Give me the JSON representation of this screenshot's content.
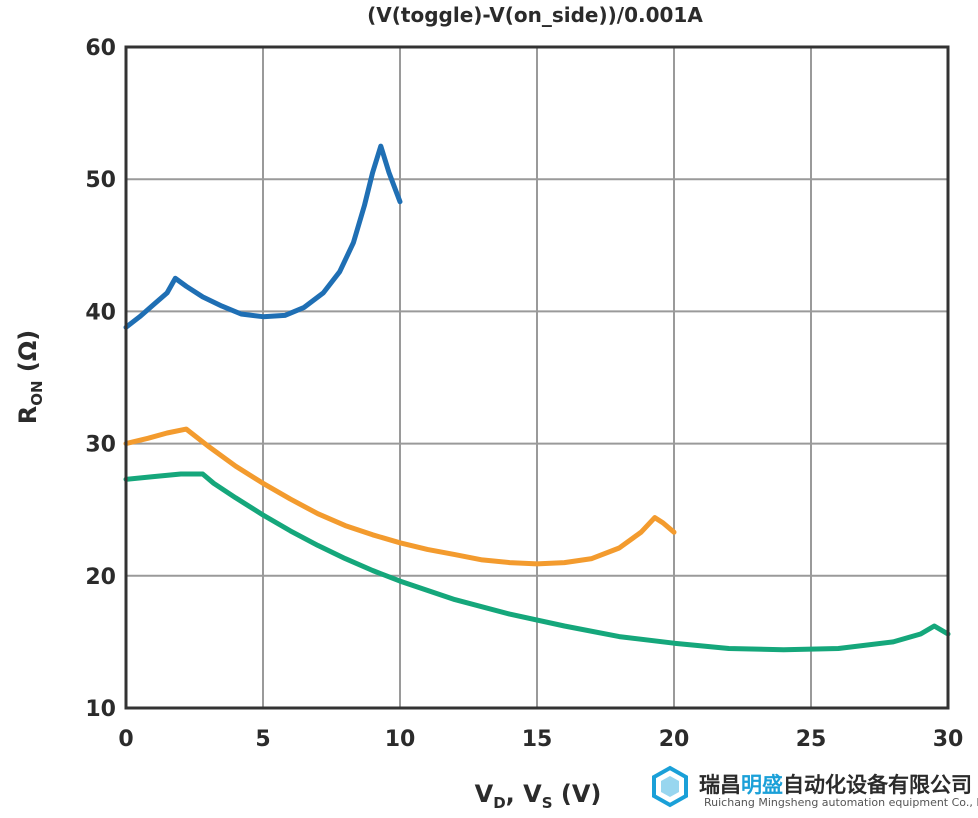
{
  "chart_data": {
    "type": "line",
    "title": "(V(toggle)-V(on_side))/0.001A",
    "xlabel": {
      "main": "V",
      "sub1": "D",
      "sep": ", V",
      "sub2": "S",
      "unit": " (V)"
    },
    "ylabel": {
      "main": "R",
      "sub": "ON",
      "unit": " (Ω)"
    },
    "xlim": [
      0,
      30
    ],
    "ylim": [
      10,
      60
    ],
    "xticks": [
      "0",
      "5",
      "10",
      "15",
      "20",
      "25",
      "30"
    ],
    "xtick_values": [
      0,
      5,
      10,
      15,
      20,
      25,
      30
    ],
    "yticks": [
      "10",
      "20",
      "30",
      "40",
      "50",
      "60"
    ],
    "ytick_values": [
      10,
      20,
      30,
      40,
      50,
      60
    ],
    "grid": true,
    "series": [
      {
        "color": "#1f6fb4",
        "points": [
          [
            0,
            38.8
          ],
          [
            0.5,
            39.6
          ],
          [
            1.0,
            40.5
          ],
          [
            1.5,
            41.4
          ],
          [
            1.8,
            42.5
          ],
          [
            2.2,
            41.9
          ],
          [
            2.8,
            41.1
          ],
          [
            3.5,
            40.4
          ],
          [
            4.2,
            39.8
          ],
          [
            5.0,
            39.6
          ],
          [
            5.8,
            39.7
          ],
          [
            6.5,
            40.3
          ],
          [
            7.2,
            41.4
          ],
          [
            7.8,
            43.0
          ],
          [
            8.3,
            45.2
          ],
          [
            8.7,
            48.0
          ],
          [
            9.0,
            50.5
          ],
          [
            9.3,
            52.5
          ],
          [
            9.6,
            50.5
          ],
          [
            10.0,
            48.3
          ]
        ]
      },
      {
        "color": "#f39b2e",
        "points": [
          [
            0,
            30.0
          ],
          [
            0.8,
            30.4
          ],
          [
            1.5,
            30.8
          ],
          [
            2.2,
            31.1
          ],
          [
            3.0,
            29.8
          ],
          [
            4.0,
            28.3
          ],
          [
            5.0,
            27.0
          ],
          [
            6.0,
            25.8
          ],
          [
            7.0,
            24.7
          ],
          [
            8.0,
            23.8
          ],
          [
            9.0,
            23.1
          ],
          [
            10.0,
            22.5
          ],
          [
            11.0,
            22.0
          ],
          [
            12.0,
            21.6
          ],
          [
            13.0,
            21.2
          ],
          [
            14.0,
            21.0
          ],
          [
            15.0,
            20.9
          ],
          [
            16.0,
            21.0
          ],
          [
            17.0,
            21.3
          ],
          [
            18.0,
            22.1
          ],
          [
            18.8,
            23.3
          ],
          [
            19.3,
            24.4
          ],
          [
            19.6,
            24.0
          ],
          [
            20.0,
            23.3
          ]
        ]
      },
      {
        "color": "#15a77b",
        "points": [
          [
            0,
            27.3
          ],
          [
            1.0,
            27.5
          ],
          [
            2.0,
            27.7
          ],
          [
            2.8,
            27.7
          ],
          [
            3.2,
            27.0
          ],
          [
            4.0,
            25.9
          ],
          [
            5.0,
            24.6
          ],
          [
            6.0,
            23.4
          ],
          [
            7.0,
            22.3
          ],
          [
            8.0,
            21.3
          ],
          [
            9.0,
            20.4
          ],
          [
            10.0,
            19.6
          ],
          [
            12.0,
            18.2
          ],
          [
            14.0,
            17.1
          ],
          [
            16.0,
            16.2
          ],
          [
            18.0,
            15.4
          ],
          [
            20.0,
            14.9
          ],
          [
            22.0,
            14.5
          ],
          [
            24.0,
            14.4
          ],
          [
            26.0,
            14.5
          ],
          [
            28.0,
            15.0
          ],
          [
            29.0,
            15.6
          ],
          [
            29.5,
            16.2
          ],
          [
            30.0,
            15.6
          ]
        ]
      }
    ]
  },
  "watermark": {
    "company_cn_prefix": "瑞昌",
    "company_cn_highlight": "明盛",
    "company_cn_suffix": "自动化设备有限公司",
    "company_en": "Ruichang Mingsheng automation equipment Co., Ltd",
    "icon": "hexagon-logo-icon",
    "color_highlight": "#1aa0d8"
  }
}
